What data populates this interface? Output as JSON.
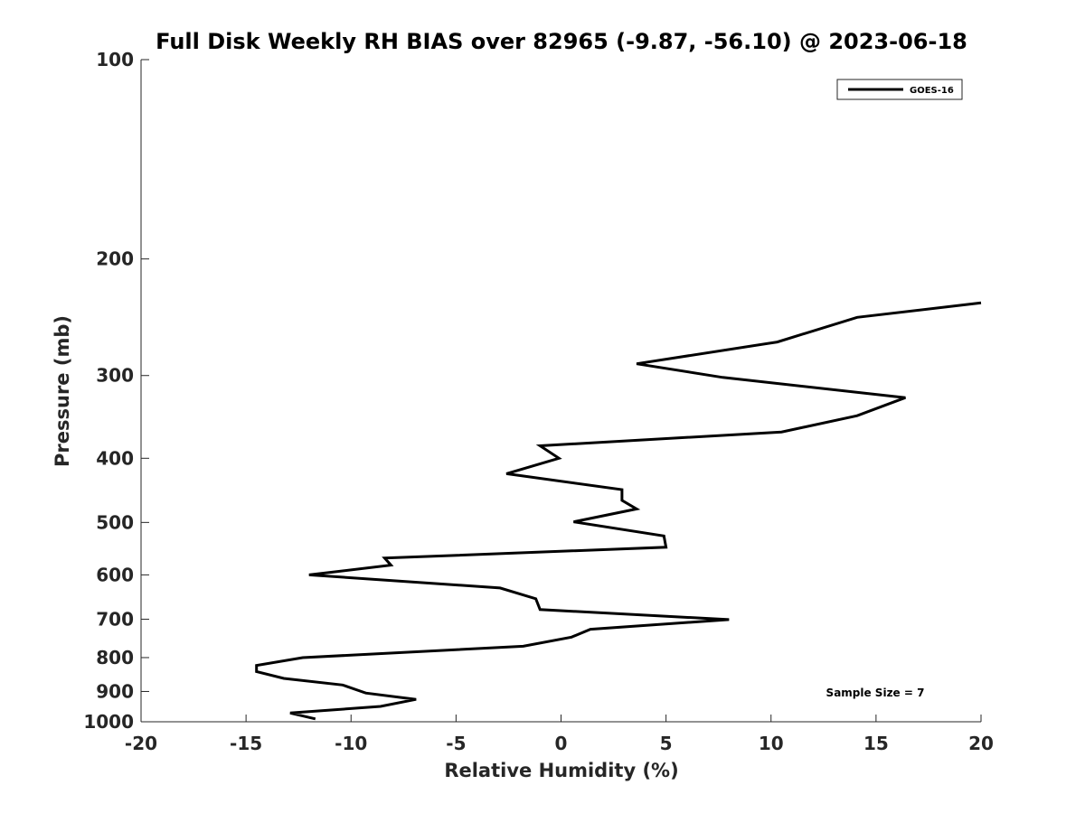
{
  "chart_data": {
    "type": "line",
    "title": "Full Disk Weekly RH BIAS over 82965 (-9.87, -56.10) @ 2023-06-18",
    "xlabel": "Relative Humidity (%)",
    "ylabel": "Pressure (mb)",
    "xlim": [
      -20,
      20
    ],
    "ylim": [
      100,
      1000
    ],
    "y_scale": "log",
    "y_direction": "reversed",
    "x_ticks": [
      -20,
      -15,
      -10,
      -5,
      0,
      5,
      10,
      15,
      20
    ],
    "x_tick_labels": [
      "-20",
      "-15",
      "-10",
      "-5",
      "0",
      "5",
      "10",
      "15",
      "20"
    ],
    "y_ticks": [
      100,
      200,
      300,
      400,
      500,
      600,
      700,
      800,
      900,
      1000
    ],
    "y_tick_labels": [
      "100",
      "200",
      "300",
      "400",
      "500",
      "600",
      "700",
      "800",
      "900",
      "1000"
    ],
    "grid": false,
    "legend": {
      "position": "top-right",
      "entries": [
        "GOES-16"
      ]
    },
    "annotation": "Sample Size = 7",
    "line_color": "#000000",
    "series": [
      {
        "name": "GOES-16",
        "points": [
          [
            20.0,
            233
          ],
          [
            14.1,
            245
          ],
          [
            10.3,
            267
          ],
          [
            3.6,
            288
          ],
          [
            7.7,
            302
          ],
          [
            16.4,
            324
          ],
          [
            14.1,
            345
          ],
          [
            10.5,
            365
          ],
          [
            -1.0,
            383
          ],
          [
            -0.1,
            400
          ],
          [
            -2.6,
            422
          ],
          [
            2.9,
            446
          ],
          [
            2.9,
            463
          ],
          [
            3.6,
            477
          ],
          [
            0.6,
            499
          ],
          [
            4.9,
            524
          ],
          [
            5.0,
            545
          ],
          [
            -8.4,
            566
          ],
          [
            -8.1,
            580
          ],
          [
            -12.0,
            600
          ],
          [
            -2.9,
            628
          ],
          [
            -1.2,
            652
          ],
          [
            -1.0,
            677
          ],
          [
            8.0,
            701
          ],
          [
            1.4,
            725
          ],
          [
            0.5,
            745
          ],
          [
            -1.8,
            769
          ],
          [
            -12.3,
            800
          ],
          [
            -14.5,
            822
          ],
          [
            -14.5,
            840
          ],
          [
            -13.2,
            860
          ],
          [
            -10.4,
            880
          ],
          [
            -9.3,
            905
          ],
          [
            -6.9,
            925
          ],
          [
            -8.6,
            948
          ],
          [
            -12.9,
            970
          ],
          [
            -11.7,
            990
          ]
        ]
      }
    ]
  }
}
